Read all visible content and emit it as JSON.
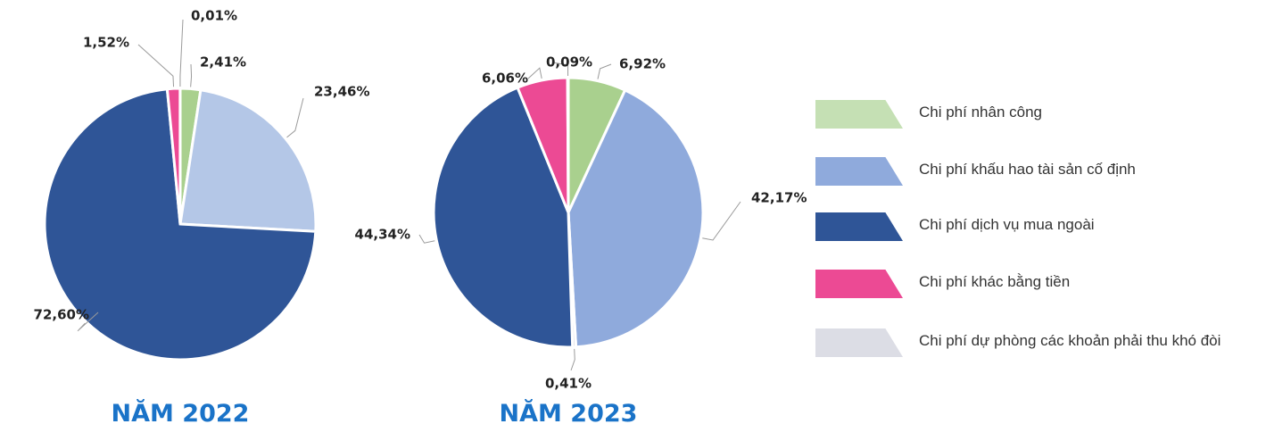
{
  "chart_data": [
    {
      "type": "pie",
      "title": "NĂM 2022",
      "categories": [
        "Chi phí nhân công",
        "Chi phí khấu hao tài sản cố định",
        "Chi phí dịch vụ mua ngoài",
        "Chi phí khác bằng tiền",
        "Chi phí dự phòng các khoản phải thu khó đòi"
      ],
      "values": [
        2.41,
        23.46,
        72.6,
        1.52,
        0.01
      ],
      "value_labels": [
        "2,41%",
        "23,46%",
        "72,60%",
        "1,52%",
        "0,01%"
      ],
      "colors": [
        "#a9d08e",
        "#b4c7e7",
        "#2f5597",
        "#ec4a94",
        "#dcdde5"
      ]
    },
    {
      "type": "pie",
      "title": "NĂM 2023",
      "values": [
        6.92,
        42.17,
        0.41,
        44.34,
        6.06,
        0.09
      ],
      "value_labels": [
        "6,92%",
        "42,17%",
        "0,41%",
        "44,34%",
        "6,06%",
        "0,09%"
      ],
      "colors": [
        "#a9d08e",
        "#8faadc",
        "#dcdde5",
        "#2f5597",
        "#ec4a94",
        "#dcdde5"
      ]
    }
  ],
  "legend_colors": [
    "#c5e0b4",
    "#8faadc",
    "#2f5597",
    "#ec4a94",
    "#dcdde5"
  ]
}
